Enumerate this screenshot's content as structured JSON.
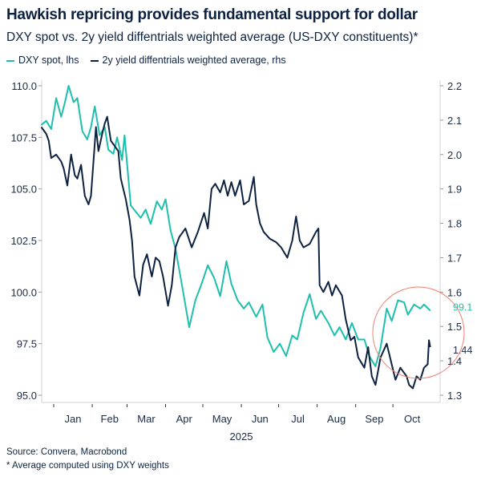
{
  "title": "Hawkish repricing provides fundamental support for dollar",
  "subtitle": "DXY spot vs. 2y yield diffentrials weighted average (US-DXY constituents)*",
  "source": "Source: Convera, Macrobond",
  "footnote": "* Average computed using DXY weights",
  "chart_data": {
    "type": "line",
    "xlabel": "2025",
    "x_tick_labels": [
      "Jan",
      "Feb",
      "Mar",
      "Apr",
      "May",
      "Jun",
      "Jul",
      "Aug",
      "Sep",
      "Oct"
    ],
    "y_left": {
      "lim": [
        95,
        110
      ],
      "ticks": [
        "95.0",
        "97.5",
        "100.0",
        "102.5",
        "105.0",
        "107.5",
        "110.0"
      ]
    },
    "y_right": {
      "lim": [
        1.3,
        2.2
      ],
      "ticks": [
        "1.3",
        "1.4",
        "1.5",
        "1.6",
        "1.7",
        "1.8",
        "1.9",
        "2.0",
        "2.1",
        "2.2"
      ]
    },
    "legend_position": "top-left",
    "annotation": "circle highlighting late Sep-Oct divergence",
    "annotation_color": "#f08070",
    "series": [
      {
        "name": "DXY spot, lhs",
        "axis": "left",
        "color": "#1dbfad",
        "end_label": "99.1",
        "points": [
          [
            "2024-12-22",
            108.1
          ],
          [
            "2024-12-26",
            108.3
          ],
          [
            "2024-12-30",
            107.9
          ],
          [
            "2025-01-03",
            109.4
          ],
          [
            "2025-01-07",
            108.5
          ],
          [
            "2025-01-10",
            109.2
          ],
          [
            "2025-01-13",
            110.0
          ],
          [
            "2025-01-17",
            109.2
          ],
          [
            "2025-01-20",
            109.4
          ],
          [
            "2025-01-24",
            107.8
          ],
          [
            "2025-01-28",
            107.4
          ],
          [
            "2025-01-31",
            108.0
          ],
          [
            "2025-02-03",
            109.0
          ],
          [
            "2025-02-07",
            107.6
          ],
          [
            "2025-02-11",
            108.0
          ],
          [
            "2025-02-14",
            106.9
          ],
          [
            "2025-02-18",
            106.7
          ],
          [
            "2025-02-21",
            107.5
          ],
          [
            "2025-02-25",
            106.4
          ],
          [
            "2025-02-27",
            107.6
          ],
          [
            "2025-03-04",
            104.2
          ],
          [
            "2025-03-08",
            103.9
          ],
          [
            "2025-03-12",
            103.6
          ],
          [
            "2025-03-16",
            104.0
          ],
          [
            "2025-03-20",
            103.3
          ],
          [
            "2025-03-25",
            104.4
          ],
          [
            "2025-03-29",
            104.0
          ],
          [
            "2025-04-01",
            104.5
          ],
          [
            "2025-04-05",
            103.0
          ],
          [
            "2025-04-09",
            102.1
          ],
          [
            "2025-04-14",
            100.4
          ],
          [
            "2025-04-20",
            98.3
          ],
          [
            "2025-04-25",
            99.6
          ],
          [
            "2025-04-30",
            100.4
          ],
          [
            "2025-05-05",
            101.3
          ],
          [
            "2025-05-10",
            100.7
          ],
          [
            "2025-05-15",
            99.8
          ],
          [
            "2025-05-20",
            101.5
          ],
          [
            "2025-05-24",
            100.4
          ],
          [
            "2025-05-29",
            99.6
          ],
          [
            "2025-06-03",
            99.2
          ],
          [
            "2025-06-07",
            99.5
          ],
          [
            "2025-06-13",
            98.8
          ],
          [
            "2025-06-18",
            99.4
          ],
          [
            "2025-06-22",
            97.8
          ],
          [
            "2025-06-27",
            97.1
          ],
          [
            "2025-07-02",
            97.5
          ],
          [
            "2025-07-07",
            96.9
          ],
          [
            "2025-07-12",
            97.9
          ],
          [
            "2025-07-16",
            97.7
          ],
          [
            "2025-07-21",
            99.0
          ],
          [
            "2025-07-26",
            99.9
          ],
          [
            "2025-07-31",
            98.7
          ],
          [
            "2025-08-04",
            99.1
          ],
          [
            "2025-08-10",
            98.5
          ],
          [
            "2025-08-15",
            97.9
          ],
          [
            "2025-08-19",
            98.3
          ],
          [
            "2025-08-24",
            97.7
          ],
          [
            "2025-08-29",
            98.5
          ],
          [
            "2025-09-03",
            97.7
          ],
          [
            "2025-09-08",
            97.7
          ],
          [
            "2025-09-12",
            96.9
          ],
          [
            "2025-09-17",
            96.4
          ],
          [
            "2025-09-21",
            97.3
          ],
          [
            "2025-09-26",
            99.2
          ],
          [
            "2025-09-30",
            98.6
          ],
          [
            "2025-10-05",
            99.6
          ],
          [
            "2025-10-10",
            99.5
          ],
          [
            "2025-10-13",
            98.9
          ],
          [
            "2025-10-18",
            99.4
          ],
          [
            "2025-10-23",
            99.2
          ],
          [
            "2025-10-26",
            99.4
          ],
          [
            "2025-10-31",
            99.1
          ]
        ]
      },
      {
        "name": "2y yield diffentrials weighted average, rhs",
        "axis": "right",
        "color": "#0d2240",
        "end_label": "1.44",
        "points": [
          [
            "2024-12-22",
            2.08
          ],
          [
            "2024-12-26",
            2.06
          ],
          [
            "2024-12-28",
            2.04
          ],
          [
            "2024-12-30",
            1.99
          ],
          [
            "2025-01-03",
            2.0
          ],
          [
            "2025-01-07",
            1.98
          ],
          [
            "2025-01-09",
            1.96
          ],
          [
            "2025-01-12",
            1.91
          ],
          [
            "2025-01-15",
            2.0
          ],
          [
            "2025-01-18",
            1.94
          ],
          [
            "2025-01-20",
            1.93
          ],
          [
            "2025-01-23",
            1.97
          ],
          [
            "2025-01-26",
            1.88
          ],
          [
            "2025-01-29",
            1.855
          ],
          [
            "2025-01-31",
            1.88
          ],
          [
            "2025-02-04",
            2.08
          ],
          [
            "2025-02-06",
            2.01
          ],
          [
            "2025-02-09",
            2.06
          ],
          [
            "2025-02-11",
            2.09
          ],
          [
            "2025-02-13",
            2.11
          ],
          [
            "2025-02-16",
            2.04
          ],
          [
            "2025-02-22",
            2.01
          ],
          [
            "2025-02-24",
            1.93
          ],
          [
            "2025-02-28",
            1.87
          ],
          [
            "2025-03-03",
            1.81
          ],
          [
            "2025-03-05",
            1.75
          ],
          [
            "2025-03-07",
            1.645
          ],
          [
            "2025-03-11",
            1.59
          ],
          [
            "2025-03-14",
            1.68
          ],
          [
            "2025-03-17",
            1.71
          ],
          [
            "2025-03-21",
            1.645
          ],
          [
            "2025-03-24",
            1.7
          ],
          [
            "2025-03-27",
            1.69
          ],
          [
            "2025-03-30",
            1.645
          ],
          [
            "2025-04-03",
            1.56
          ],
          [
            "2025-04-06",
            1.62
          ],
          [
            "2025-04-09",
            1.73
          ],
          [
            "2025-04-12",
            1.76
          ],
          [
            "2025-04-17",
            1.785
          ],
          [
            "2025-04-22",
            1.73
          ],
          [
            "2025-04-27",
            1.775
          ],
          [
            "2025-05-02",
            1.83
          ],
          [
            "2025-05-05",
            1.785
          ],
          [
            "2025-05-08",
            1.9
          ],
          [
            "2025-05-11",
            1.915
          ],
          [
            "2025-05-15",
            1.89
          ],
          [
            "2025-05-18",
            1.925
          ],
          [
            "2025-05-21",
            1.88
          ],
          [
            "2025-05-24",
            1.92
          ],
          [
            "2025-05-27",
            1.88
          ],
          [
            "2025-05-31",
            1.925
          ],
          [
            "2025-06-03",
            1.855
          ],
          [
            "2025-06-07",
            1.865
          ],
          [
            "2025-06-11",
            1.935
          ],
          [
            "2025-06-13",
            1.855
          ],
          [
            "2025-06-16",
            1.8
          ],
          [
            "2025-06-19",
            1.775
          ],
          [
            "2025-06-24",
            1.755
          ],
          [
            "2025-06-29",
            1.745
          ],
          [
            "2025-07-03",
            1.73
          ],
          [
            "2025-07-08",
            1.7
          ],
          [
            "2025-07-12",
            1.75
          ],
          [
            "2025-07-15",
            1.82
          ],
          [
            "2025-07-18",
            1.75
          ],
          [
            "2025-07-21",
            1.73
          ],
          [
            "2025-07-26",
            1.74
          ],
          [
            "2025-07-31",
            1.775
          ],
          [
            "2025-08-02",
            1.785
          ],
          [
            "2025-08-03",
            1.62
          ],
          [
            "2025-08-06",
            1.6
          ],
          [
            "2025-08-10",
            1.63
          ],
          [
            "2025-08-13",
            1.59
          ],
          [
            "2025-08-16",
            1.62
          ],
          [
            "2025-08-21",
            1.59
          ],
          [
            "2025-08-24",
            1.52
          ],
          [
            "2025-08-28",
            1.46
          ],
          [
            "2025-08-31",
            1.47
          ],
          [
            "2025-09-03",
            1.41
          ],
          [
            "2025-09-08",
            1.38
          ],
          [
            "2025-09-11",
            1.44
          ],
          [
            "2025-09-14",
            1.355
          ],
          [
            "2025-09-17",
            1.33
          ],
          [
            "2025-09-21",
            1.41
          ],
          [
            "2025-09-26",
            1.45
          ],
          [
            "2025-09-30",
            1.39
          ],
          [
            "2025-10-03",
            1.345
          ],
          [
            "2025-10-07",
            1.38
          ],
          [
            "2025-10-12",
            1.355
          ],
          [
            "2025-10-14",
            1.33
          ],
          [
            "2025-10-17",
            1.32
          ],
          [
            "2025-10-20",
            1.355
          ],
          [
            "2025-10-23",
            1.345
          ],
          [
            "2025-10-26",
            1.38
          ],
          [
            "2025-10-29",
            1.39
          ],
          [
            "2025-10-30",
            1.46
          ],
          [
            "2025-10-31",
            1.44
          ]
        ]
      }
    ]
  }
}
